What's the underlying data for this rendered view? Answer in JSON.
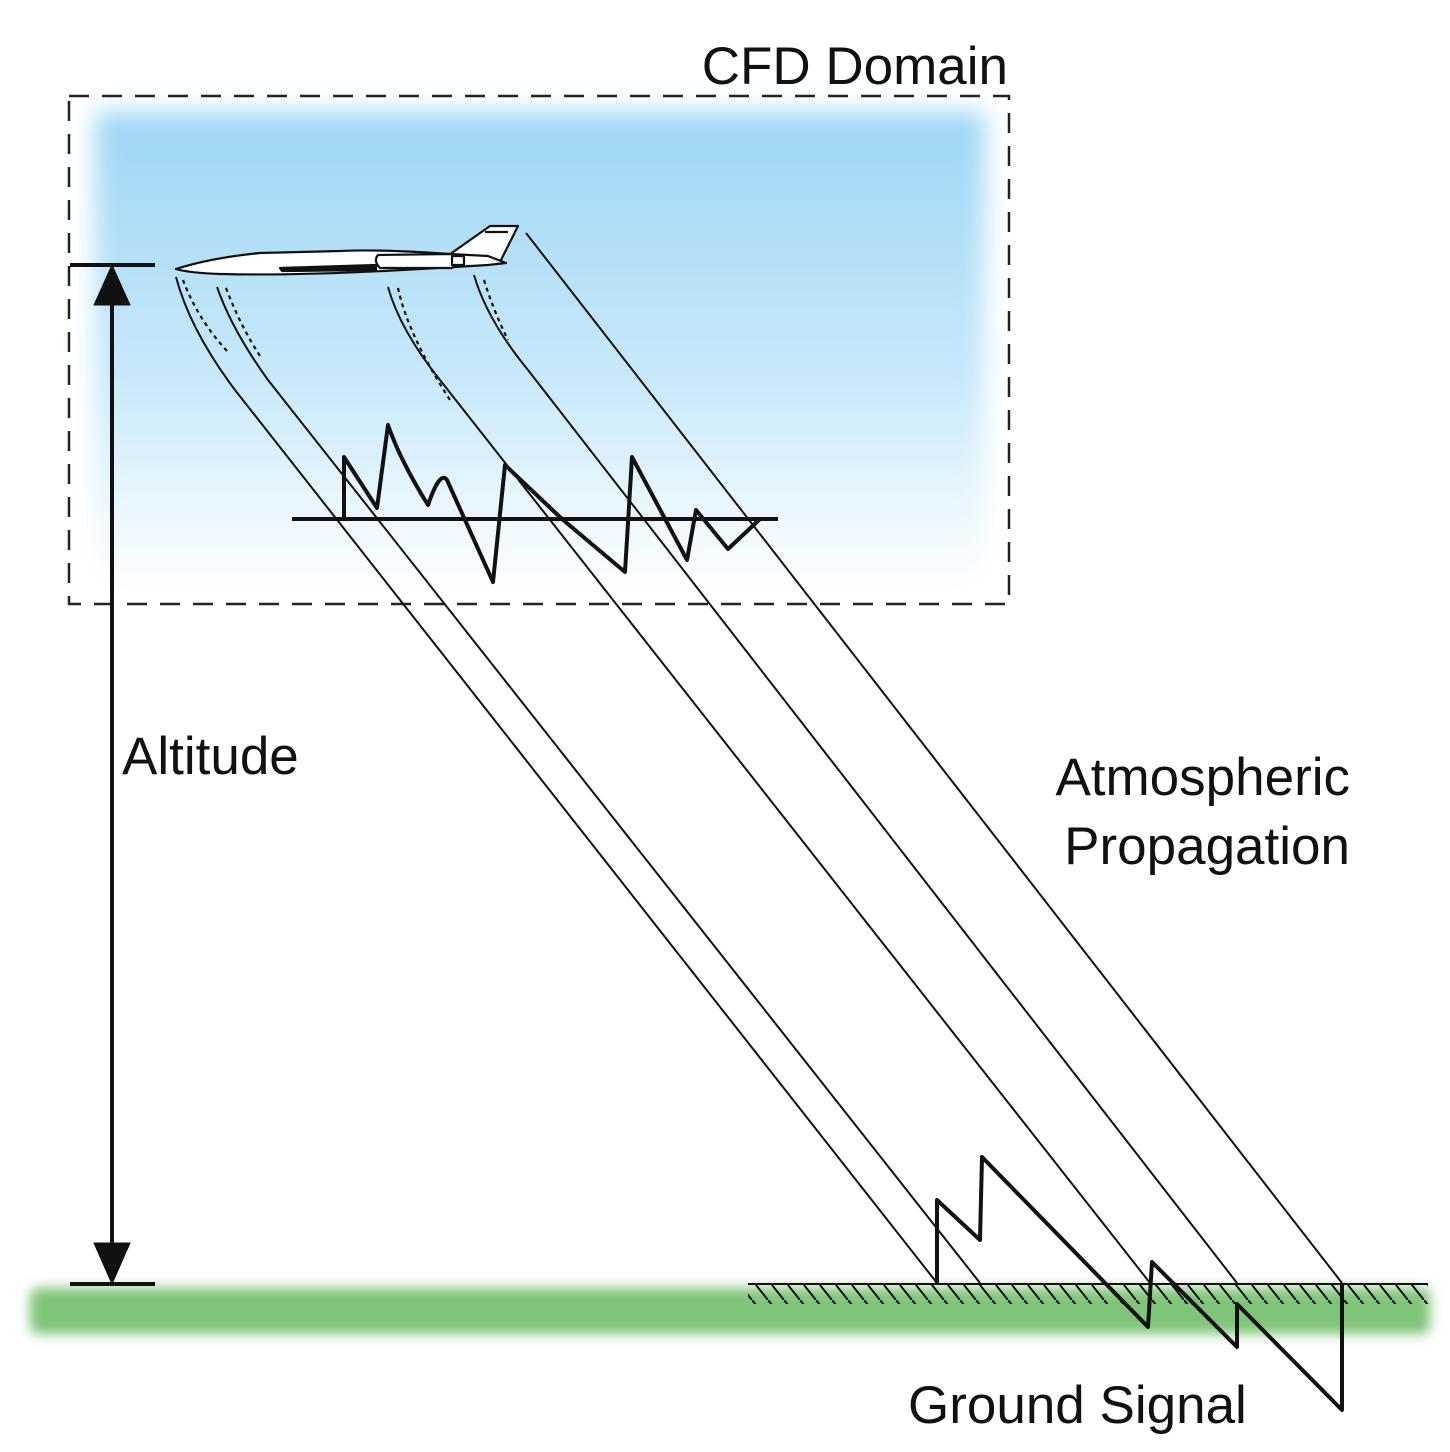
{
  "labels": {
    "domain": "CFD Domain",
    "altitude": "Altitude",
    "propagation_line1": "Atmospheric",
    "propagation_line2": "Propagation",
    "ground": "Ground Signal"
  },
  "colors": {
    "sky_top": "#9dd6f5",
    "sky_bottom": "#ffffff",
    "ground": "#7fc478",
    "ink": "#111111"
  },
  "icons": {
    "aircraft": "supersonic-jet-icon",
    "near_field_signature": "near-field-pressure-signature",
    "ground_signature": "n-wave-ground-signature"
  }
}
